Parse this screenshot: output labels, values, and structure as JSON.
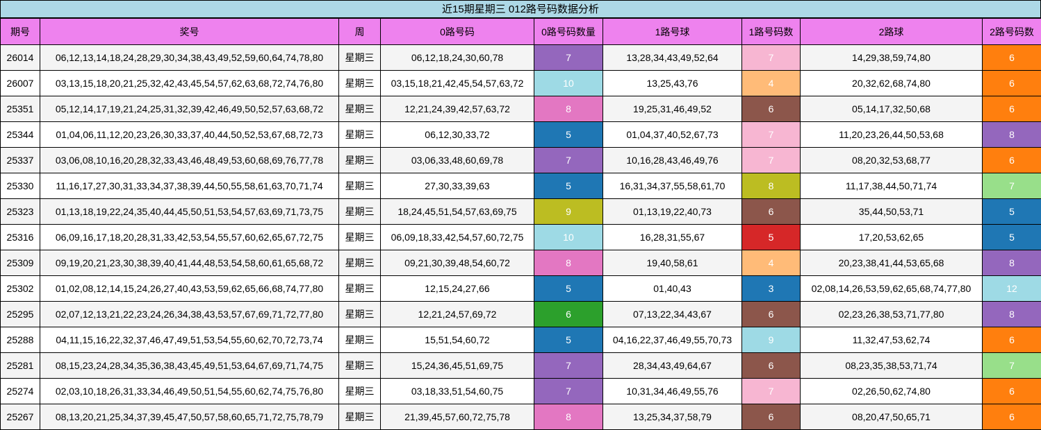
{
  "title": "近15期星期三 012路号码数据分析",
  "headers": [
    "期号",
    "奖号",
    "周",
    "0路号码",
    "0路号码数量",
    "1路号球",
    "1路号码数",
    "2路球",
    "2路号码数"
  ],
  "colors": {
    "3": "#1f77b4",
    "4": "#ffbb78",
    "5a": "#1f77b4",
    "5b": "#d62728",
    "6a": "#2ca02c",
    "6b": "#8c564b",
    "6c": "#ff7f0e",
    "7a": "#9467bd",
    "7b": "#f7b6d2",
    "7c": "#98df8a",
    "8a": "#e377c2",
    "8b": "#bcbd22",
    "8c": "#9467bd",
    "9a": "#bcbd22",
    "9b": "#9edae5",
    "10": "#9edae5",
    "12": "#9edae5"
  },
  "rows": [
    {
      "issue": "26014",
      "nums": "06,12,13,14,18,24,28,29,30,34,38,43,49,52,59,60,64,74,78,80",
      "week": "星期三",
      "r0": "06,12,18,24,30,60,78",
      "c0": "7",
      "r1": "13,28,34,43,49,52,64",
      "c1": "7",
      "r2": "14,29,38,59,74,80",
      "c2": "6",
      "bg0": "#9467bd",
      "bg1": "#f7b6d2",
      "bg2": "#ff7f0e"
    },
    {
      "issue": "26007",
      "nums": "03,13,15,18,20,21,25,32,42,43,45,54,57,62,63,68,72,74,76,80",
      "week": "星期三",
      "r0": "03,15,18,21,42,45,54,57,63,72",
      "c0": "10",
      "r1": "13,25,43,76",
      "c1": "4",
      "r2": "20,32,62,68,74,80",
      "c2": "6",
      "bg0": "#9edae5",
      "bg1": "#ffbb78",
      "bg2": "#ff7f0e"
    },
    {
      "issue": "25351",
      "nums": "05,12,14,17,19,21,24,25,31,32,39,42,46,49,50,52,57,63,68,72",
      "week": "星期三",
      "r0": "12,21,24,39,42,57,63,72",
      "c0": "8",
      "r1": "19,25,31,46,49,52",
      "c1": "6",
      "r2": "05,14,17,32,50,68",
      "c2": "6",
      "bg0": "#e377c2",
      "bg1": "#8c564b",
      "bg2": "#ff7f0e"
    },
    {
      "issue": "25344",
      "nums": "01,04,06,11,12,20,23,26,30,33,37,40,44,50,52,53,67,68,72,73",
      "week": "星期三",
      "r0": "06,12,30,33,72",
      "c0": "5",
      "r1": "01,04,37,40,52,67,73",
      "c1": "7",
      "r2": "11,20,23,26,44,50,53,68",
      "c2": "8",
      "bg0": "#1f77b4",
      "bg1": "#f7b6d2",
      "bg2": "#9467bd"
    },
    {
      "issue": "25337",
      "nums": "03,06,08,10,16,20,28,32,33,43,46,48,49,53,60,68,69,76,77,78",
      "week": "星期三",
      "r0": "03,06,33,48,60,69,78",
      "c0": "7",
      "r1": "10,16,28,43,46,49,76",
      "c1": "7",
      "r2": "08,20,32,53,68,77",
      "c2": "6",
      "bg0": "#9467bd",
      "bg1": "#f7b6d2",
      "bg2": "#ff7f0e"
    },
    {
      "issue": "25330",
      "nums": "11,16,17,27,30,31,33,34,37,38,39,44,50,55,58,61,63,70,71,74",
      "week": "星期三",
      "r0": "27,30,33,39,63",
      "c0": "5",
      "r1": "16,31,34,37,55,58,61,70",
      "c1": "8",
      "r2": "11,17,38,44,50,71,74",
      "c2": "7",
      "bg0": "#1f77b4",
      "bg1": "#bcbd22",
      "bg2": "#98df8a"
    },
    {
      "issue": "25323",
      "nums": "01,13,18,19,22,24,35,40,44,45,50,51,53,54,57,63,69,71,73,75",
      "week": "星期三",
      "r0": "18,24,45,51,54,57,63,69,75",
      "c0": "9",
      "r1": "01,13,19,22,40,73",
      "c1": "6",
      "r2": "35,44,50,53,71",
      "c2": "5",
      "bg0": "#bcbd22",
      "bg1": "#8c564b",
      "bg2": "#1f77b4"
    },
    {
      "issue": "25316",
      "nums": "06,09,16,17,18,20,28,31,33,42,53,54,55,57,60,62,65,67,72,75",
      "week": "星期三",
      "r0": "06,09,18,33,42,54,57,60,72,75",
      "c0": "10",
      "r1": "16,28,31,55,67",
      "c1": "5",
      "r2": "17,20,53,62,65",
      "c2": "5",
      "bg0": "#9edae5",
      "bg1": "#d62728",
      "bg2": "#1f77b4"
    },
    {
      "issue": "25309",
      "nums": "09,19,20,21,23,30,38,39,40,41,44,48,53,54,58,60,61,65,68,72",
      "week": "星期三",
      "r0": "09,21,30,39,48,54,60,72",
      "c0": "8",
      "r1": "19,40,58,61",
      "c1": "4",
      "r2": "20,23,38,41,44,53,65,68",
      "c2": "8",
      "bg0": "#e377c2",
      "bg1": "#ffbb78",
      "bg2": "#9467bd"
    },
    {
      "issue": "25302",
      "nums": "01,02,08,12,14,15,24,26,27,40,43,53,59,62,65,66,68,74,77,80",
      "week": "星期三",
      "r0": "12,15,24,27,66",
      "c0": "5",
      "r1": "01,40,43",
      "c1": "3",
      "r2": "02,08,14,26,53,59,62,65,68,74,77,80",
      "c2": "12",
      "bg0": "#1f77b4",
      "bg1": "#1f77b4",
      "bg2": "#9edae5"
    },
    {
      "issue": "25295",
      "nums": "02,07,12,13,21,22,23,24,26,34,38,43,53,57,67,69,71,72,77,80",
      "week": "星期三",
      "r0": "12,21,24,57,69,72",
      "c0": "6",
      "r1": "07,13,22,34,43,67",
      "c1": "6",
      "r2": "02,23,26,38,53,71,77,80",
      "c2": "8",
      "bg0": "#2ca02c",
      "bg1": "#8c564b",
      "bg2": "#9467bd"
    },
    {
      "issue": "25288",
      "nums": "04,11,15,16,22,32,37,46,47,49,51,53,54,55,60,62,70,72,73,74",
      "week": "星期三",
      "r0": "15,51,54,60,72",
      "c0": "5",
      "r1": "04,16,22,37,46,49,55,70,73",
      "c1": "9",
      "r2": "11,32,47,53,62,74",
      "c2": "6",
      "bg0": "#1f77b4",
      "bg1": "#9edae5",
      "bg2": "#ff7f0e"
    },
    {
      "issue": "25281",
      "nums": "08,15,23,24,28,34,35,36,38,43,45,49,51,53,64,67,69,71,74,75",
      "week": "星期三",
      "r0": "15,24,36,45,51,69,75",
      "c0": "7",
      "r1": "28,34,43,49,64,67",
      "c1": "6",
      "r2": "08,23,35,38,53,71,74",
      "c2": "7",
      "bg0": "#9467bd",
      "bg1": "#8c564b",
      "bg2": "#98df8a"
    },
    {
      "issue": "25274",
      "nums": "02,03,10,18,26,31,33,34,46,49,50,51,54,55,60,62,74,75,76,80",
      "week": "星期三",
      "r0": "03,18,33,51,54,60,75",
      "c0": "7",
      "r1": "10,31,34,46,49,55,76",
      "c1": "7",
      "r2": "02,26,50,62,74,80",
      "c2": "6",
      "bg0": "#9467bd",
      "bg1": "#f7b6d2",
      "bg2": "#ff7f0e"
    },
    {
      "issue": "25267",
      "nums": "08,13,20,21,25,34,37,39,45,47,50,57,58,60,65,71,72,75,78,79",
      "week": "星期三",
      "r0": "21,39,45,57,60,72,75,78",
      "c0": "8",
      "r1": "13,25,34,37,58,79",
      "c1": "6",
      "r2": "08,20,47,50,65,71",
      "c2": "6",
      "bg0": "#e377c2",
      "bg1": "#8c564b",
      "bg2": "#ff7f0e"
    }
  ]
}
